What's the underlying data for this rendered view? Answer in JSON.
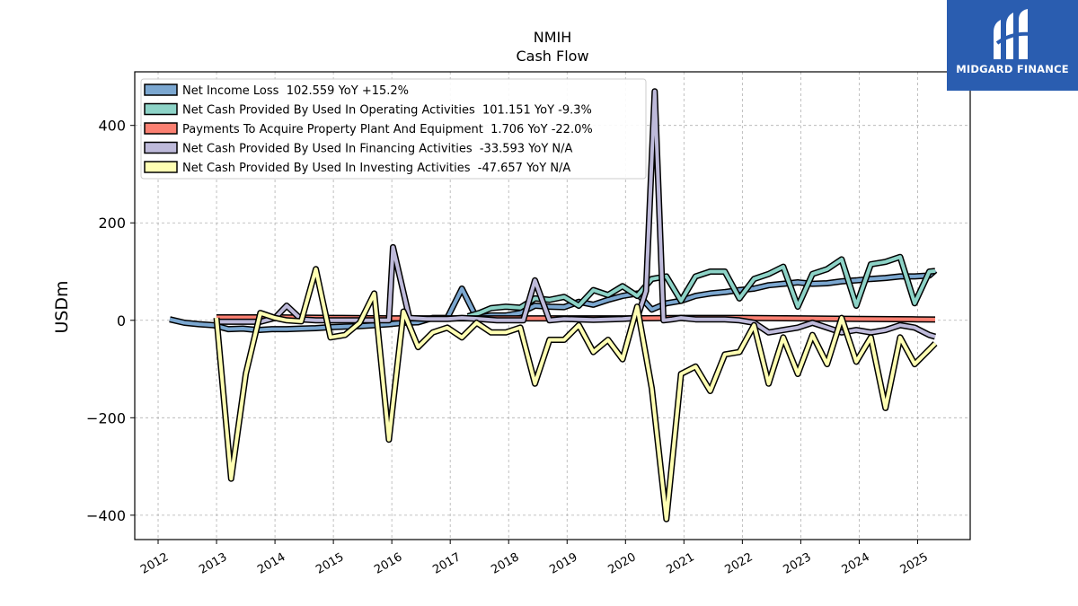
{
  "brand": {
    "name": "MIDGARD FINANCE",
    "bg_color": "#2a5db0"
  },
  "chart_data": {
    "type": "line",
    "title": "NMIH",
    "subtitle": "Cash Flow",
    "ylabel": "USDm",
    "xlabel": "",
    "ylim": [
      -450,
      510
    ],
    "xlim": [
      2011.6,
      2025.9
    ],
    "yticks": [
      400,
      200,
      0,
      -200,
      -400
    ],
    "ytick_labels": [
      "400",
      "200",
      "0",
      "−200",
      "−400"
    ],
    "xticks": [
      2012,
      2013,
      2014,
      2015,
      2016,
      2017,
      2018,
      2019,
      2020,
      2021,
      2022,
      2023,
      2024,
      2025
    ],
    "xtick_labels": [
      "2012",
      "2013",
      "2014",
      "2015",
      "2016",
      "2017",
      "2018",
      "2019",
      "2020",
      "2021",
      "2022",
      "2023",
      "2024",
      "2025"
    ],
    "grid": true,
    "legend_position": "top-left",
    "series": [
      {
        "name": "Net Income Loss  102.559 YoY +15.2%",
        "color": "#7ba7d0",
        "x": [
          2012.2,
          2012.45,
          2012.7,
          2012.95,
          2013.2,
          2013.45,
          2013.7,
          2013.95,
          2014.2,
          2014.45,
          2014.7,
          2014.95,
          2015.2,
          2015.45,
          2015.7,
          2015.95,
          2016.2,
          2016.45,
          2016.7,
          2016.95,
          2017.2,
          2017.45,
          2017.7,
          2017.95,
          2018.2,
          2018.45,
          2018.7,
          2018.95,
          2019.2,
          2019.45,
          2019.7,
          2019.95,
          2020.2,
          2020.45,
          2020.7,
          2020.95,
          2021.2,
          2021.45,
          2021.7,
          2021.95,
          2022.2,
          2022.45,
          2022.7,
          2022.95,
          2023.2,
          2023.45,
          2023.7,
          2023.95,
          2024.2,
          2024.45,
          2024.7,
          2024.95,
          2025.2,
          2025.3
        ],
        "y": [
          2,
          -5,
          -8,
          -10,
          -18,
          -17,
          -20,
          -18,
          -18,
          -17,
          -16,
          -14,
          -13,
          -12,
          -10,
          -8,
          -5,
          -4,
          5,
          5,
          65,
          5,
          10,
          10,
          15,
          30,
          28,
          27,
          38,
          32,
          42,
          50,
          55,
          22,
          35,
          40,
          50,
          55,
          58,
          62,
          65,
          72,
          75,
          78,
          75,
          76,
          80,
          82,
          85,
          87,
          90,
          90,
          92,
          102.559
        ]
      },
      {
        "name": "Net Cash Provided By Used In Operating Activities  101.151 YoY -9.3%",
        "color": "#8dd3c7",
        "x": [
          2017.3,
          2017.5,
          2017.7,
          2017.95,
          2018.2,
          2018.45,
          2018.7,
          2018.95,
          2019.2,
          2019.45,
          2019.7,
          2019.95,
          2020.2,
          2020.45,
          2020.7,
          2020.95,
          2021.2,
          2021.45,
          2021.7,
          2021.95,
          2022.2,
          2022.45,
          2022.7,
          2022.95,
          2023.2,
          2023.45,
          2023.7,
          2023.95,
          2024.2,
          2024.45,
          2024.7,
          2024.95,
          2025.2,
          2025.3
        ],
        "y": [
          8,
          15,
          25,
          28,
          26,
          45,
          42,
          48,
          30,
          62,
          52,
          70,
          50,
          85,
          90,
          40,
          90,
          100,
          100,
          45,
          85,
          95,
          110,
          28,
          95,
          105,
          125,
          30,
          115,
          120,
          130,
          35,
          100,
          101.151
        ]
      },
      {
        "name": "Payments To Acquire Property Plant And Equipment  1.706 YoY -22.0%",
        "color": "#fb8072",
        "x": [
          2013.0,
          2014.0,
          2015.0,
          2016.0,
          2017.0,
          2018.0,
          2019.0,
          2020.0,
          2021.0,
          2022.0,
          2023.0,
          2024.0,
          2025.0,
          2025.3
        ],
        "y": [
          6,
          6,
          5,
          4,
          4,
          4,
          4,
          4,
          5,
          5,
          4,
          3,
          2,
          1.706
        ]
      },
      {
        "name": "Net Cash Provided By Used In Financing Activities  -33.593 YoY N/A",
        "color": "#bebada",
        "x": [
          2013.0,
          2013.5,
          2013.75,
          2014.0,
          2014.2,
          2014.45,
          2014.7,
          2014.95,
          2015.2,
          2015.45,
          2015.7,
          2015.95,
          2016.02,
          2016.3,
          2016.6,
          2016.95,
          2017.2,
          2017.5,
          2017.8,
          2017.95,
          2018.25,
          2018.45,
          2018.7,
          2018.95,
          2019.2,
          2019.45,
          2019.7,
          2019.95,
          2020.2,
          2020.35,
          2020.5,
          2020.65,
          2020.8,
          2020.95,
          2021.2,
          2021.45,
          2021.7,
          2021.95,
          2022.2,
          2022.45,
          2022.7,
          2022.95,
          2023.2,
          2023.45,
          2023.7,
          2023.95,
          2024.2,
          2024.45,
          2024.7,
          2024.95,
          2025.2,
          2025.3
        ],
        "y": [
          -3,
          -3,
          -3,
          5,
          30,
          2,
          0,
          0,
          0,
          0,
          0,
          0,
          150,
          5,
          3,
          3,
          5,
          3,
          0,
          0,
          0,
          82,
          0,
          3,
          2,
          1,
          2,
          3,
          5,
          60,
          470,
          0,
          2,
          5,
          2,
          2,
          2,
          0,
          -5,
          -25,
          -20,
          -15,
          -5,
          -15,
          -25,
          -20,
          -25,
          -20,
          -10,
          -15,
          -30,
          -33.593
        ]
      },
      {
        "name": "Net Cash Provided By Used In Investing Activities  -47.657 YoY N/A",
        "color": "#ffffb3",
        "x": [
          2013.0,
          2013.25,
          2013.5,
          2013.75,
          2014.0,
          2014.2,
          2014.45,
          2014.7,
          2014.95,
          2015.2,
          2015.45,
          2015.7,
          2015.95,
          2016.2,
          2016.45,
          2016.7,
          2016.95,
          2017.2,
          2017.45,
          2017.7,
          2017.95,
          2018.2,
          2018.45,
          2018.7,
          2018.95,
          2019.2,
          2019.45,
          2019.7,
          2019.95,
          2020.2,
          2020.45,
          2020.7,
          2020.95,
          2021.2,
          2021.45,
          2021.7,
          2021.95,
          2022.2,
          2022.45,
          2022.7,
          2022.95,
          2023.2,
          2023.45,
          2023.7,
          2023.95,
          2024.2,
          2024.45,
          2024.7,
          2024.95,
          2025.2,
          2025.3
        ],
        "y": [
          5,
          -325,
          -110,
          15,
          5,
          0,
          -2,
          105,
          -35,
          -30,
          -5,
          55,
          -245,
          18,
          -55,
          -25,
          -15,
          -35,
          -5,
          -25,
          -25,
          -15,
          -130,
          -40,
          -40,
          -10,
          -65,
          -40,
          -80,
          28,
          -140,
          -408,
          -110,
          -95,
          -145,
          -70,
          -65,
          -10,
          -130,
          -35,
          -110,
          -30,
          -90,
          5,
          -85,
          -35,
          -180,
          -35,
          -90,
          -60,
          -47.657
        ]
      }
    ]
  }
}
